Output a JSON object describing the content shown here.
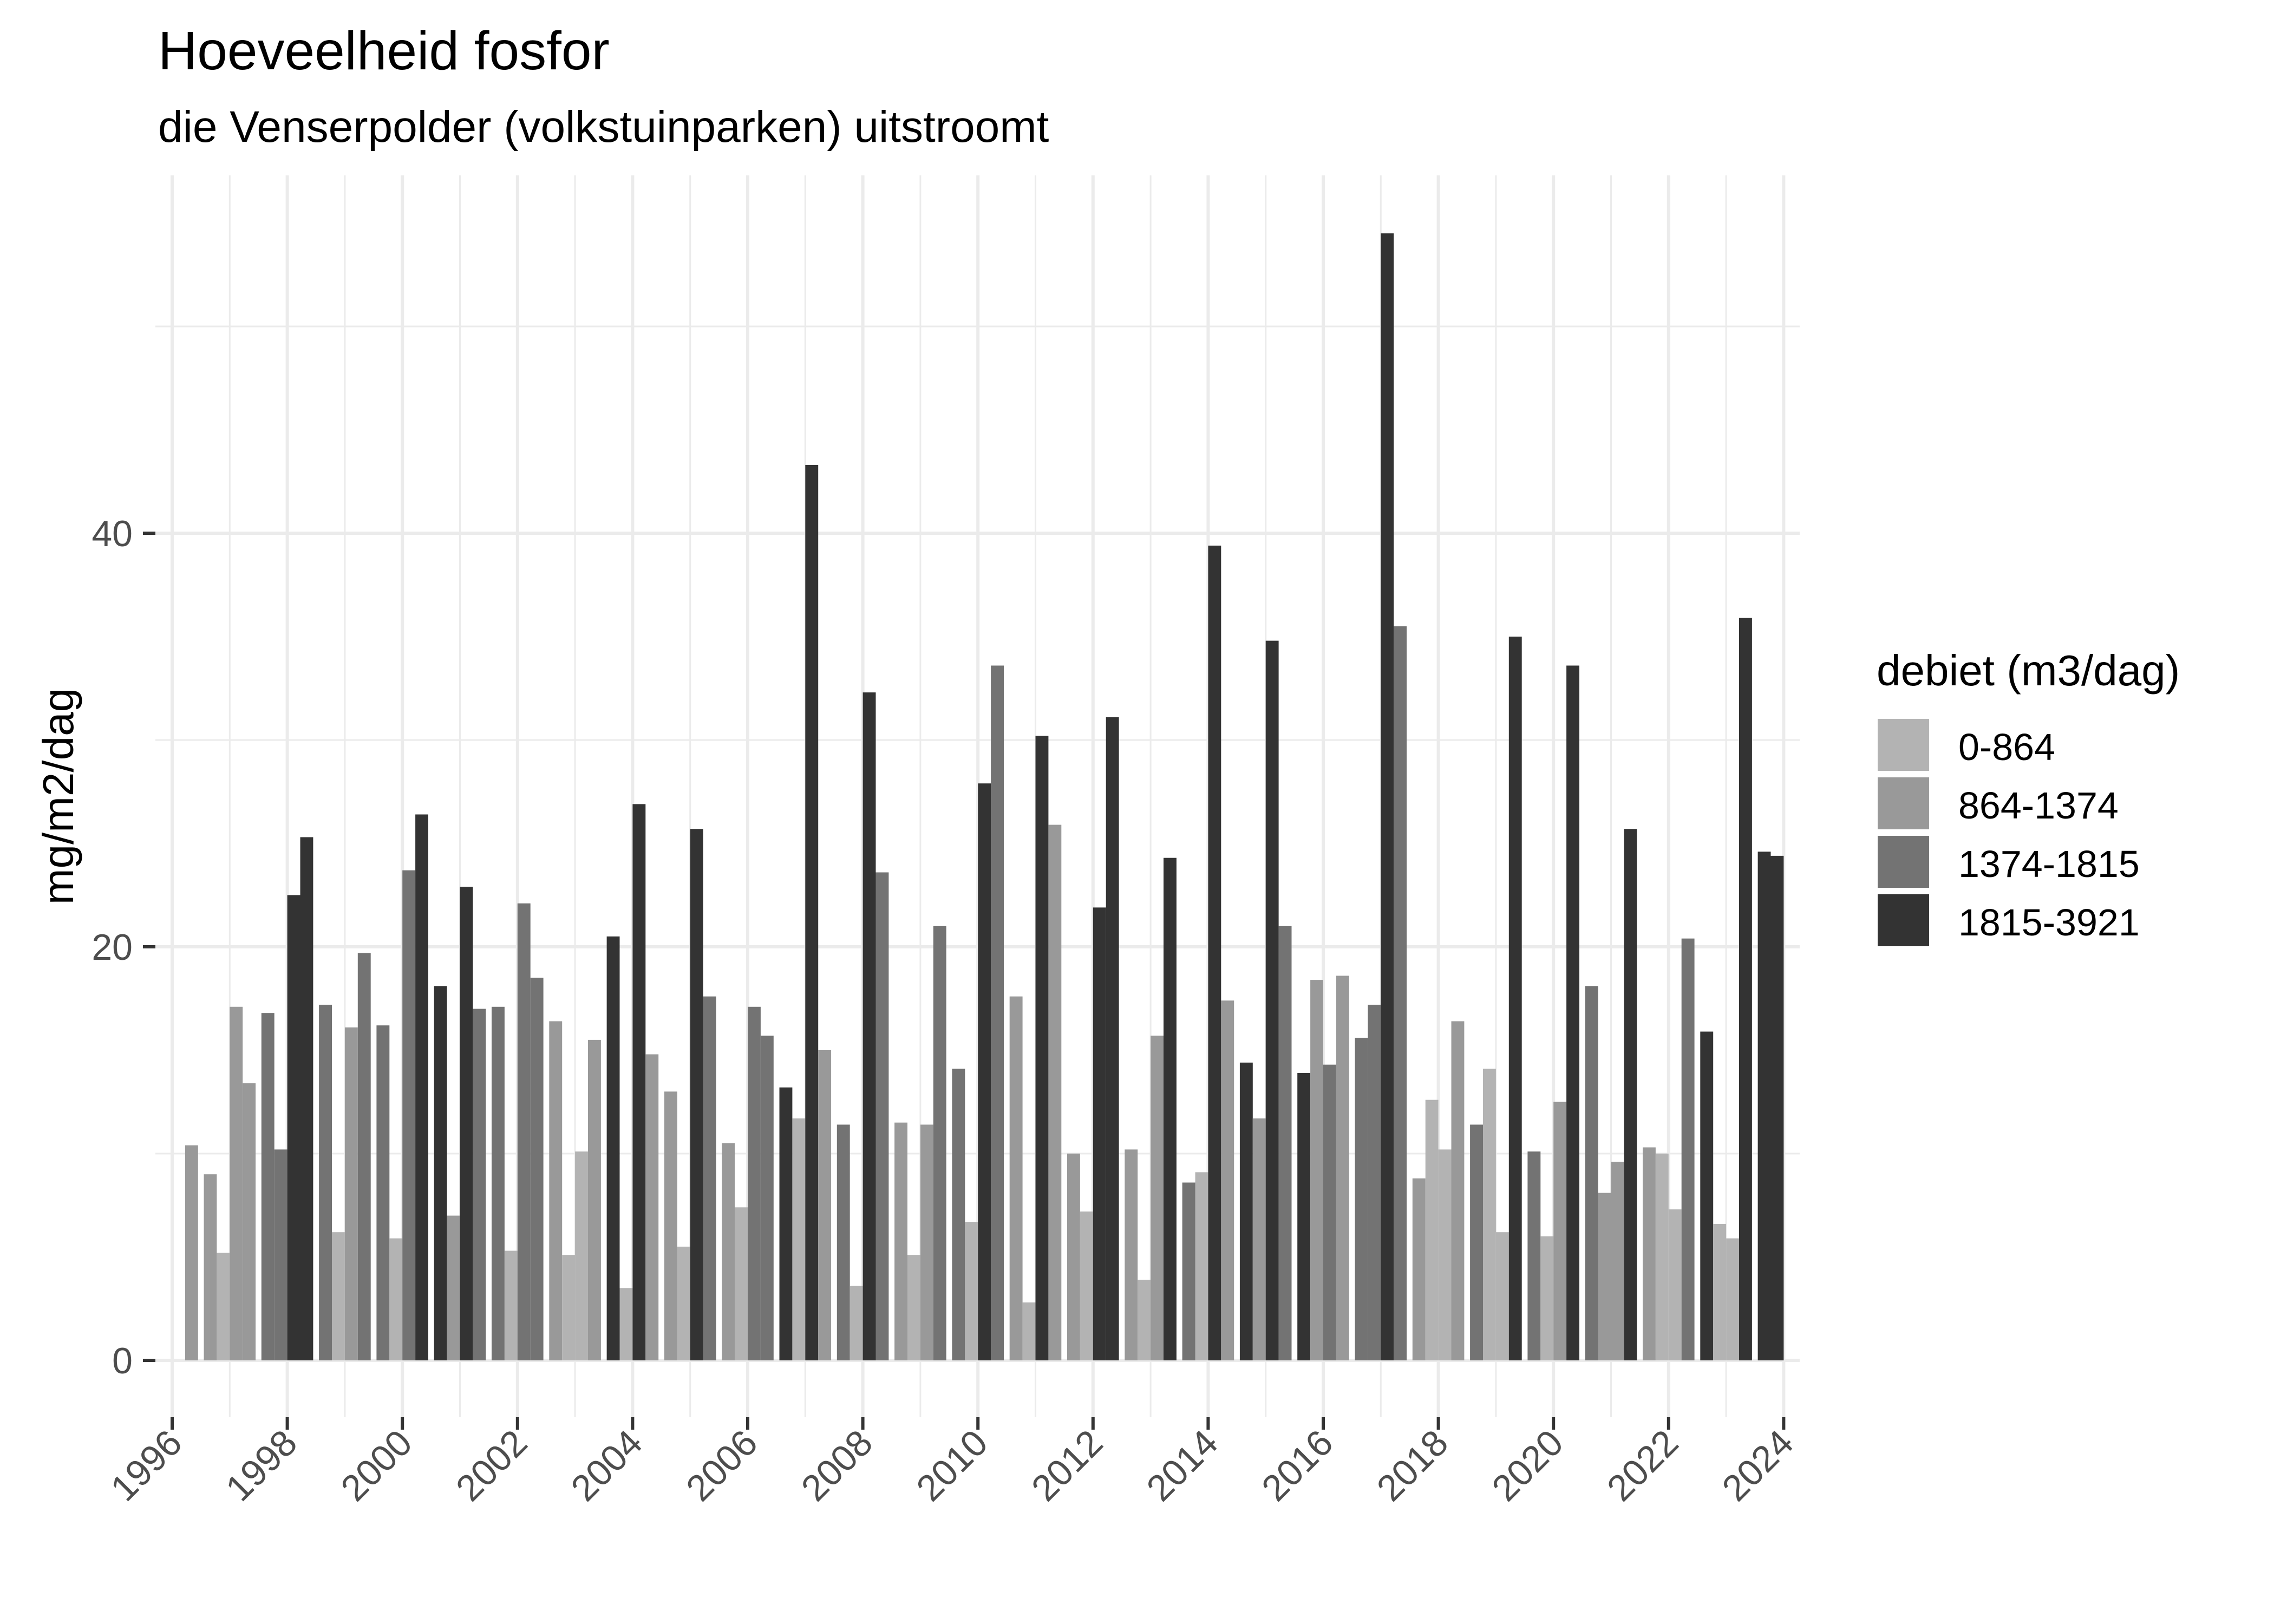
{
  "chart_data": {
    "type": "bar",
    "title": "Hoeveelheid fosfor",
    "subtitle": "die Venserpolder (volkstuinparken) uitstroomt",
    "xlabel": "",
    "ylabel": "mg/m2/dag",
    "xlim": [
      1995.9,
      2024.4
    ],
    "ylim": [
      -3,
      57
    ],
    "x_ticks": [
      1996,
      1998,
      2000,
      2002,
      2004,
      2006,
      2008,
      2010,
      2012,
      2014,
      2016,
      2018,
      2020,
      2022,
      2024
    ],
    "x_tick_labels": [
      "1996",
      "1998",
      "2000",
      "2002",
      "2004",
      "2006",
      "2008",
      "2010",
      "2012",
      "2014",
      "2016",
      "2018",
      "2020",
      "2022",
      "2024"
    ],
    "y_ticks": [
      0,
      20,
      40
    ],
    "y_tick_labels": [
      "0",
      "20",
      "40"
    ],
    "grid": true,
    "legend": {
      "title": "debiet (m3/dag)",
      "placement": "right",
      "entries": [
        "0-864",
        "864-1374",
        "1374-1815",
        "1815-3921"
      ],
      "colors": [
        "#b3b3b3",
        "#999999",
        "#737373",
        "#333333"
      ]
    },
    "bar_layout": "4 dodged bars per year (slot 1-4), value in mg/m2/dag, class index refers to legend entries (1-based)",
    "bars_by_year": {
      "1996": [
        null,
        null,
        null,
        [
          10.4,
          2
        ]
      ],
      "1997": [
        [
          9.0,
          2
        ],
        [
          5.2,
          1
        ],
        [
          17.1,
          2
        ],
        [
          13.4,
          2
        ]
      ],
      "1998": [
        [
          16.8,
          3
        ],
        [
          10.2,
          3
        ],
        [
          22.5,
          4
        ],
        [
          25.3,
          4
        ]
      ],
      "1999": [
        [
          17.2,
          3
        ],
        [
          6.2,
          1
        ],
        [
          16.1,
          2
        ],
        [
          19.7,
          3
        ]
      ],
      "2000": [
        [
          16.2,
          3
        ],
        [
          5.9,
          1
        ],
        [
          23.7,
          3
        ],
        [
          26.4,
          4
        ]
      ],
      "2001": [
        [
          18.1,
          4
        ],
        [
          7.0,
          2
        ],
        [
          22.9,
          4
        ],
        [
          17.0,
          3
        ]
      ],
      "2002": [
        [
          17.1,
          3
        ],
        [
          5.3,
          1
        ],
        [
          22.1,
          3
        ],
        [
          18.5,
          3
        ]
      ],
      "2003": [
        [
          16.4,
          2
        ],
        [
          5.1,
          1
        ],
        [
          10.1,
          1
        ],
        [
          15.5,
          2
        ]
      ],
      "2004": [
        [
          20.5,
          4
        ],
        [
          3.5,
          1
        ],
        [
          26.9,
          4
        ],
        [
          14.8,
          2
        ]
      ],
      "2005": [
        [
          13.0,
          2
        ],
        [
          5.5,
          1
        ],
        [
          25.7,
          4
        ],
        [
          17.6,
          3
        ]
      ],
      "2006": [
        [
          10.5,
          2
        ],
        [
          7.4,
          1
        ],
        [
          17.1,
          3
        ],
        [
          15.7,
          3
        ]
      ],
      "2007": [
        [
          13.2,
          4
        ],
        [
          11.7,
          1
        ],
        [
          43.3,
          4
        ],
        [
          15.0,
          2
        ]
      ],
      "2008": [
        [
          11.4,
          3
        ],
        [
          3.6,
          1
        ],
        [
          32.3,
          4
        ],
        [
          23.6,
          3
        ]
      ],
      "2009": [
        [
          11.5,
          2
        ],
        [
          5.1,
          1
        ],
        [
          11.4,
          2
        ],
        [
          21.0,
          3
        ]
      ],
      "2010": [
        [
          14.1,
          3
        ],
        [
          6.7,
          1
        ],
        [
          27.9,
          4
        ],
        [
          33.6,
          3
        ]
      ],
      "2011": [
        [
          17.6,
          2
        ],
        [
          2.8,
          1
        ],
        [
          30.2,
          4
        ],
        [
          25.9,
          2
        ]
      ],
      "2012": [
        [
          10.0,
          2
        ],
        [
          7.2,
          1
        ],
        [
          21.9,
          4
        ],
        [
          31.1,
          4
        ]
      ],
      "2013": [
        [
          10.2,
          2
        ],
        [
          3.9,
          1
        ],
        [
          15.7,
          2
        ],
        [
          24.3,
          4
        ]
      ],
      "2014": [
        [
          8.6,
          3
        ],
        [
          9.1,
          1
        ],
        [
          39.4,
          4
        ],
        [
          17.4,
          2
        ]
      ],
      "2015": [
        [
          14.4,
          4
        ],
        [
          11.7,
          2
        ],
        [
          34.8,
          4
        ],
        [
          21.0,
          3
        ]
      ],
      "2016": [
        [
          13.9,
          4
        ],
        [
          18.4,
          2
        ],
        [
          14.3,
          3
        ],
        [
          18.6,
          2
        ]
      ],
      "2017": [
        [
          15.6,
          3
        ],
        [
          17.2,
          3
        ],
        [
          54.5,
          4
        ],
        [
          35.5,
          3
        ]
      ],
      "2018": [
        [
          8.8,
          2
        ],
        [
          12.6,
          1
        ],
        [
          10.2,
          1
        ],
        [
          16.4,
          2
        ]
      ],
      "2019": [
        [
          11.4,
          3
        ],
        [
          14.1,
          1
        ],
        [
          6.2,
          1
        ],
        [
          35.0,
          4
        ]
      ],
      "2020": [
        [
          10.1,
          3
        ],
        [
          6.0,
          1
        ],
        [
          12.5,
          2
        ],
        [
          33.6,
          4
        ]
      ],
      "2021": [
        [
          18.1,
          3
        ],
        [
          8.1,
          2
        ],
        [
          9.6,
          2
        ],
        [
          25.7,
          4
        ]
      ],
      "2022": [
        [
          10.3,
          2
        ],
        [
          10.0,
          1
        ],
        [
          7.3,
          1
        ],
        [
          20.4,
          3
        ]
      ],
      "2023": [
        [
          15.9,
          4
        ],
        [
          6.6,
          1
        ],
        [
          5.9,
          1
        ],
        [
          35.9,
          4
        ]
      ],
      "2024": [
        [
          24.6,
          4
        ],
        [
          24.4,
          4
        ],
        null,
        null
      ]
    }
  }
}
